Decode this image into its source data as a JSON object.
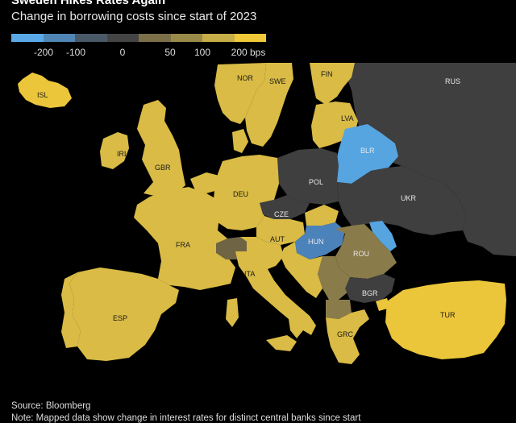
{
  "header": {
    "title": "Sweden Hikes Rates Again",
    "subtitle": "Change in borrowing costs since start of 2023"
  },
  "legend": {
    "colors": [
      "#5aa9e6",
      "#4f86b5",
      "#4a5968",
      "#444444",
      "#7c7048",
      "#9a8a4a",
      "#c7ad47",
      "#f0c938"
    ],
    "ticks": [
      "-200",
      "-100",
      "0",
      "50",
      "100",
      "200 bps"
    ]
  },
  "map": {
    "colors": {
      "sea": "#000000",
      "neutral": "#3f3f3f",
      "yellow": "#d9bb45",
      "bright_yellow": "#ecc63a",
      "olive": "#8a7b4a",
      "dark_olive": "#6f6545",
      "blue": "#56a4e0",
      "mid_blue": "#4c82ba"
    },
    "labels": {
      "isl": "ISL",
      "nor": "NOR",
      "swe": "SWE",
      "fin": "FIN",
      "rus": "RUS",
      "irl": "IRL",
      "gbr": "GBR",
      "lva": "LVA",
      "blr": "BLR",
      "pol": "POL",
      "deu": "DEU",
      "ukr": "UKR",
      "cze": "CZE",
      "fra": "FRA",
      "aut": "AUT",
      "hun": "HUN",
      "rou": "ROU",
      "ita": "ITA",
      "bgr": "BGR",
      "esp": "ESP",
      "tur": "TUR",
      "grc": "GRC"
    }
  },
  "footer": {
    "source": "Source: Bloomberg",
    "note": "Note: Mapped data show change in interest rates for distinct central banks since start"
  }
}
